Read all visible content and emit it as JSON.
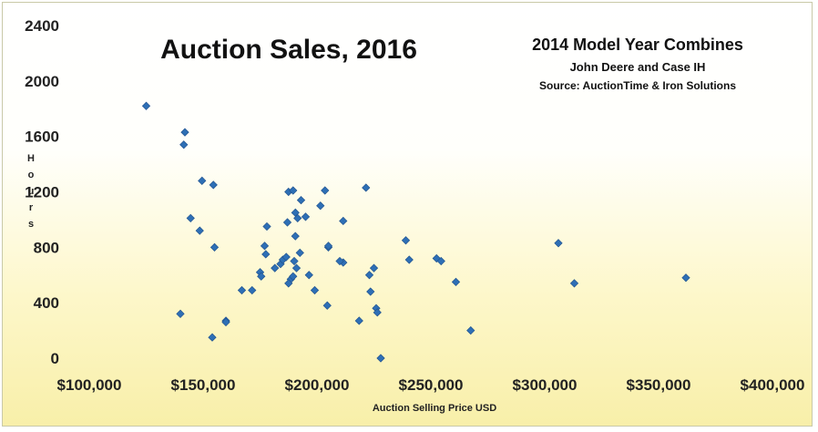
{
  "chart_data": {
    "type": "scatter",
    "title": "Auction Sales, 2016",
    "subtitle_lines": [
      "2014 Model Year Combines",
      "John Deere and Case IH",
      "Source: AuctionTime & Iron Solutions"
    ],
    "xlabel": "Auction Selling Price USD",
    "ylabel": "Hours",
    "xlim": [
      100000,
      400000
    ],
    "ylim": [
      0,
      2400
    ],
    "x_ticks": [
      100000,
      150000,
      200000,
      250000,
      300000,
      350000,
      400000
    ],
    "x_tick_labels": [
      "$100,000",
      "$150,000",
      "$200,000",
      "$250,000",
      "$300,000",
      "$350,000",
      "$400,000"
    ],
    "y_ticks": [
      0,
      400,
      800,
      1200,
      1600,
      2000,
      2400
    ],
    "y_tick_labels": [
      "0",
      "400",
      "800",
      "1200",
      "1600",
      "2000",
      "2400"
    ],
    "grid": false,
    "marker_color": "#2e6fb5",
    "points": [
      [
        125000,
        1820
      ],
      [
        142000,
        1630
      ],
      [
        141500,
        1540
      ],
      [
        144500,
        1010
      ],
      [
        148500,
        920
      ],
      [
        149500,
        1280
      ],
      [
        154500,
        1250
      ],
      [
        155000,
        800
      ],
      [
        140000,
        320
      ],
      [
        154000,
        150
      ],
      [
        160000,
        270
      ],
      [
        160000,
        260
      ],
      [
        167000,
        490
      ],
      [
        171500,
        490
      ],
      [
        175000,
        620
      ],
      [
        175500,
        590
      ],
      [
        177000,
        810
      ],
      [
        178000,
        950
      ],
      [
        177500,
        750
      ],
      [
        181500,
        650
      ],
      [
        184000,
        680
      ],
      [
        185000,
        710
      ],
      [
        187000,
        980
      ],
      [
        187500,
        1200
      ],
      [
        186500,
        730
      ],
      [
        188500,
        570
      ],
      [
        187500,
        540
      ],
      [
        189500,
        590
      ],
      [
        189500,
        1210
      ],
      [
        190500,
        1050
      ],
      [
        190500,
        880
      ],
      [
        191000,
        650
      ],
      [
        190000,
        700
      ],
      [
        191500,
        1010
      ],
      [
        193000,
        1140
      ],
      [
        192500,
        760
      ],
      [
        195000,
        1020
      ],
      [
        196500,
        600
      ],
      [
        199000,
        490
      ],
      [
        201500,
        1100
      ],
      [
        203500,
        1210
      ],
      [
        205000,
        800
      ],
      [
        205000,
        810
      ],
      [
        204500,
        380
      ],
      [
        211500,
        990
      ],
      [
        211500,
        690
      ],
      [
        210000,
        700
      ],
      [
        218500,
        270
      ],
      [
        221500,
        1230
      ],
      [
        223000,
        600
      ],
      [
        223500,
        480
      ],
      [
        225000,
        650
      ],
      [
        226000,
        360
      ],
      [
        226500,
        330
      ],
      [
        228000,
        0
      ],
      [
        239000,
        850
      ],
      [
        240500,
        710
      ],
      [
        252500,
        720
      ],
      [
        254500,
        700
      ],
      [
        261000,
        550
      ],
      [
        267500,
        200
      ],
      [
        306000,
        830
      ],
      [
        313000,
        540
      ],
      [
        362000,
        580
      ]
    ]
  }
}
